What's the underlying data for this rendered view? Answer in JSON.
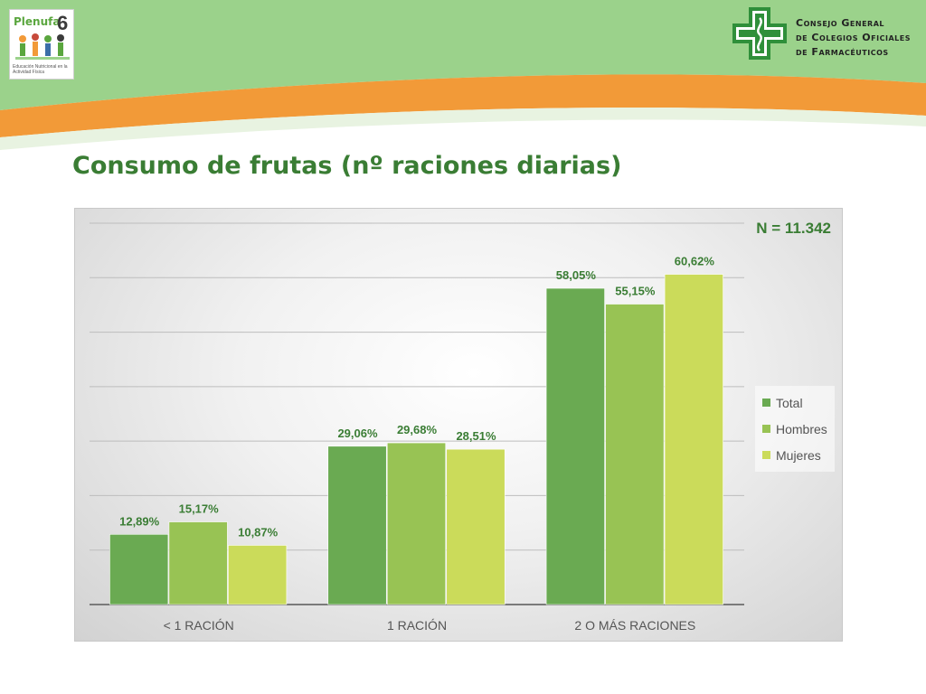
{
  "header": {
    "left_logo": {
      "brand": "Plenufa",
      "brand_num": "6",
      "tagline": "Educación Nutricional en la Actividad Física"
    },
    "right_logo": {
      "lines": [
        "Consejo General",
        "de Colegios Oficiales",
        "de Farmacéuticos"
      ]
    }
  },
  "colors": {
    "banner_green": "#9bd28b",
    "banner_orange": "#f29a38",
    "title_green": "#3a7d34"
  },
  "title": "Consumo de frutas (nº raciones diarias)",
  "chart_data": {
    "type": "bar",
    "annotation": "N = 11.342",
    "categories": [
      "< 1 RACIÓN",
      "1 RACIÓN",
      "2 O MÁS RACIONES"
    ],
    "series": [
      {
        "name": "Total",
        "color": "#6aaa52",
        "values": [
          12.89,
          29.06,
          58.05
        ],
        "labels": [
          "12,89%",
          "29,06%",
          "58,05%"
        ]
      },
      {
        "name": "Hombres",
        "color": "#98c354",
        "values": [
          15.17,
          29.68,
          55.15
        ],
        "labels": [
          "15,17%",
          "29,68%",
          "55,15%"
        ]
      },
      {
        "name": "Mujeres",
        "color": "#cbdb5a",
        "values": [
          10.87,
          28.51,
          60.62
        ],
        "labels": [
          "10,87%",
          "28,51%",
          "60,62%"
        ]
      }
    ],
    "ylim": [
      0,
      70
    ],
    "grid": true,
    "legend_position": "right"
  }
}
